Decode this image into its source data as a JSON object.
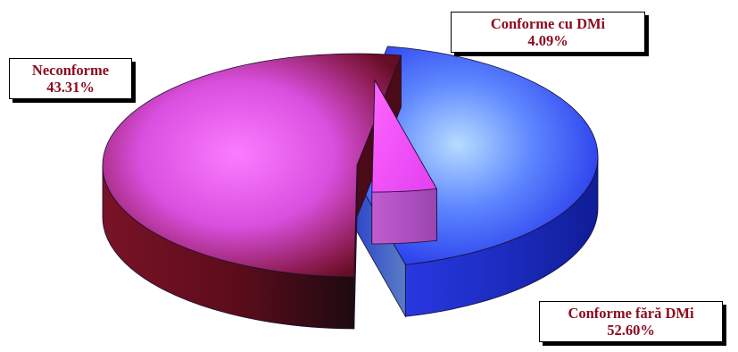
{
  "chart_data": {
    "type": "pie",
    "three_d": true,
    "exploded": true,
    "legend": "none",
    "slices": [
      {
        "label": "Neconforme",
        "value": 43.31,
        "value_label": "43.31%",
        "color": "#2f45ff"
      },
      {
        "label": "Conforme cu DMi",
        "value": 4.09,
        "value_label": "4.09%",
        "color": "#ee4ff5"
      },
      {
        "label": "Conforme fără DMi",
        "value": 52.6,
        "value_label": "52.60%",
        "color": "#d14fd8"
      }
    ],
    "label_color": "#8b0a1e",
    "side_colors": {
      "Neconforme": "#1c2fc4",
      "Conforme cu DMi": "#b04bc0",
      "Conforme fără DMi": "#6e0f1f"
    }
  }
}
